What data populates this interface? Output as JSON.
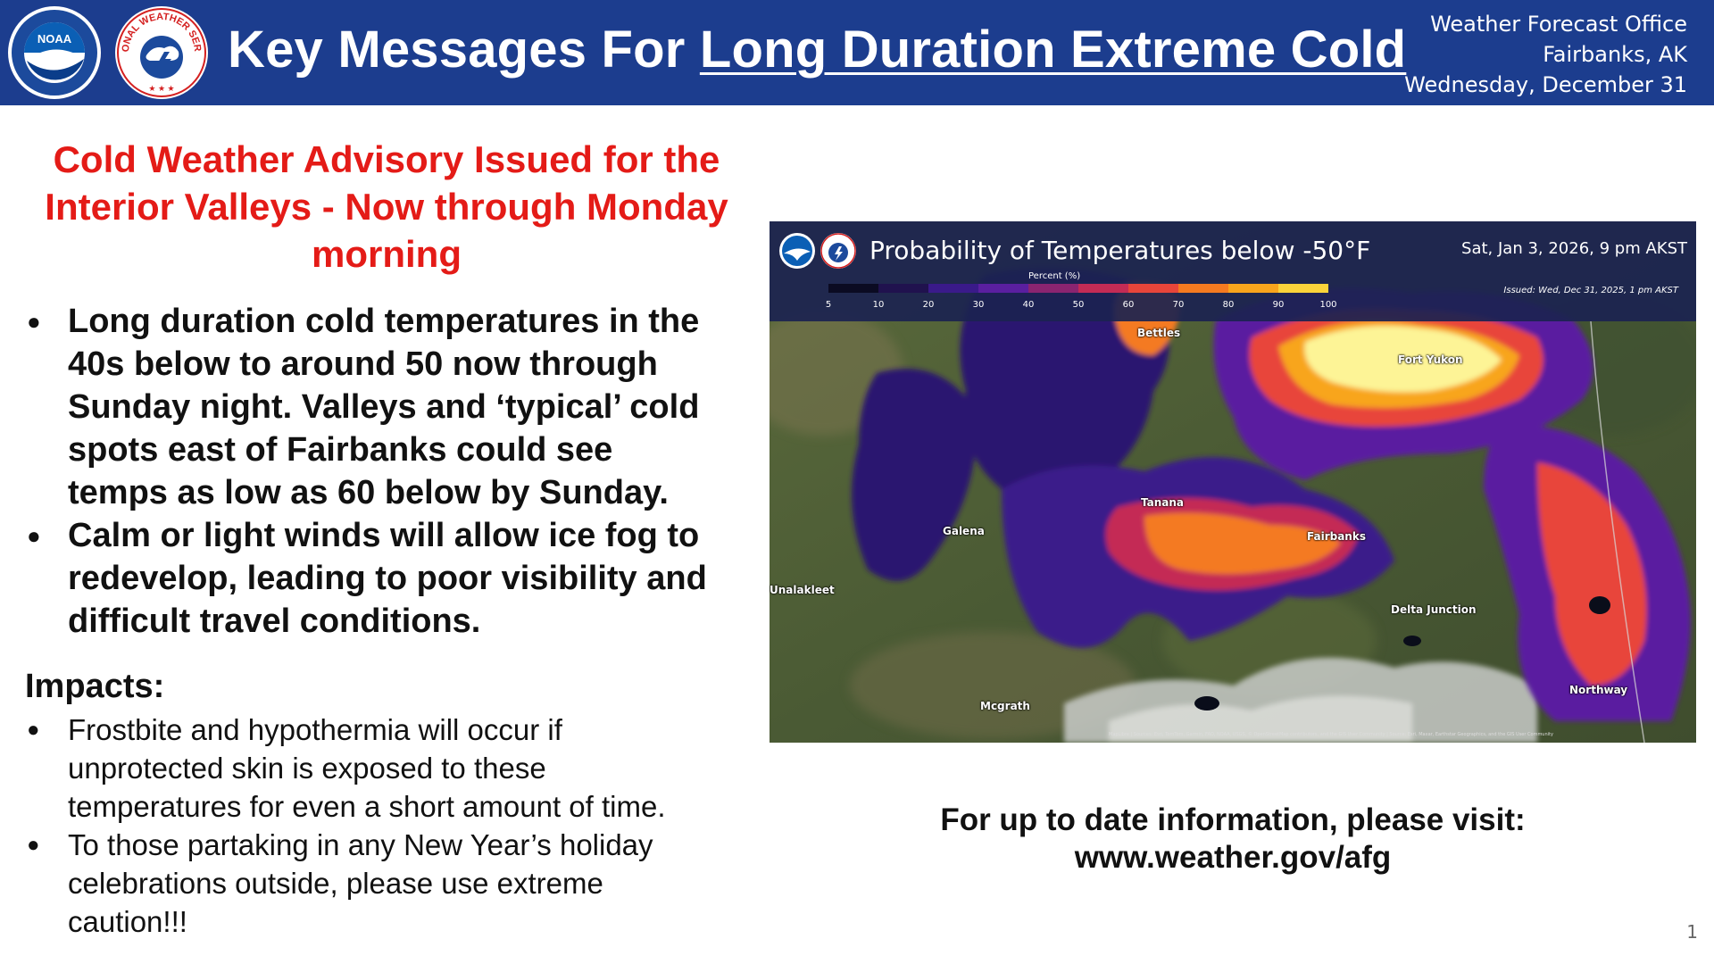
{
  "header": {
    "title_prefix": "Key Messages For ",
    "title_emphasis": "Long Duration Extreme Cold",
    "office_line1": "Weather Forecast Office",
    "office_line2": "Fairbanks, AK",
    "date": "Wednesday, December 31",
    "noaa_logo_text": "NOAA",
    "nws_logo_text": "NATIONAL WEATHER SERVICE",
    "colors": {
      "bar": "#1c3d8e",
      "text": "#ffffff"
    }
  },
  "advisory": {
    "line1": "Cold Weather Advisory Issued for the",
    "line2": "Interior Valleys - Now through Monday",
    "line3": "morning",
    "color": "#e41b17"
  },
  "key_messages": [
    {
      "l1": "Long duration cold temperatures in the",
      "l2": "40s below to around 50 now through",
      "l3": "Sunday night. Valleys and ‘typical’ cold",
      "l4": "spots east of Fairbanks could see",
      "l5": "temps as low as 60 below by Sunday."
    },
    {
      "l1": "Calm or light winds will allow ice fog to",
      "l2": "redevelop, leading to poor visibility and",
      "l3": "difficult travel conditions."
    }
  ],
  "impacts": {
    "heading": "Impacts:",
    "items": [
      {
        "l1": "Frostbite and hypothermia will occur if",
        "l2": "unprotected skin is exposed to these",
        "l3": "temperatures for even a short amount of time."
      },
      {
        "l1": "To those partaking in any New Year’s holiday",
        "l2": "celebrations outside, please use extreme",
        "l3": "caution!!!"
      }
    ]
  },
  "map": {
    "title": "Probability of Temperatures below -50°F",
    "valid": "Sat, Jan 3, 2026, 9 pm AKST",
    "issued": "Issued: Wed, Dec 31, 2025, 1 pm AKST",
    "legend_label": "Percent (%)",
    "legend_ticks": [
      "5",
      "10",
      "20",
      "30",
      "40",
      "50",
      "60",
      "70",
      "80",
      "90",
      "100"
    ],
    "legend_colors": [
      "#0b0b22",
      "#20124e",
      "#3a1a8a",
      "#5a1fa0",
      "#8a2470",
      "#c42b55",
      "#e8453a",
      "#f47a20",
      "#f8a51c",
      "#fbd33a",
      "#fdf496"
    ],
    "cities": {
      "bettles": "Bettles",
      "fort_yukon": "Fort Yukon",
      "tanana": "Tanana",
      "galena": "Galena",
      "fairbanks": "Fairbanks",
      "unalakleet": "Unalakleet",
      "delta_junction": "Delta Junction",
      "mcgrath": "Mcgrath",
      "northway": "Northway"
    },
    "credit": "MapLibre | Sources: Esri, TomTom, Garmin, FAO, NOAA, USGS, © OpenStreetMap contributors, and the GIS User Community | Source: Esri, Maxar, Earthstar Geographics, and the GIS User Community"
  },
  "visit": {
    "line1": "For up to date information, please visit:",
    "line2": "www.weather.gov/afg"
  },
  "page_number": "1"
}
